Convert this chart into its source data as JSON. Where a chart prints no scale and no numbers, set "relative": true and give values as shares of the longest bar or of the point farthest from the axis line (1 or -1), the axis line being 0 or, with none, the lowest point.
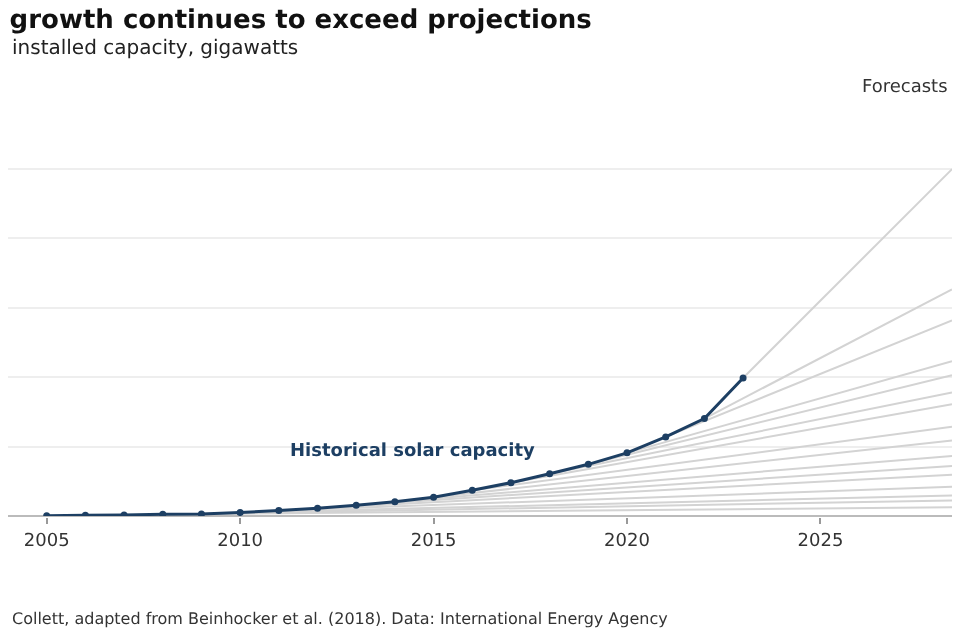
{
  "chart_data": {
    "type": "line",
    "title": "growth continues to exceed projections",
    "subtitle": "installed capacity, gigawatts",
    "relative": true,
    "grid": "y",
    "xlim": [
      2004,
      2028.4
    ],
    "xticks": [
      2005,
      2010,
      2015,
      2020,
      2025
    ],
    "series": [
      {
        "color": "#d3d3d3",
        "marker": "none",
        "x": [
          2008,
          2028.4
        ],
        "values": [
          0.005,
          0.025
        ]
      },
      {
        "color": "#d3d3d3",
        "marker": "none",
        "x": [
          2009,
          2028.4
        ],
        "values": [
          0.006,
          0.045
        ]
      },
      {
        "color": "#d3d3d3",
        "marker": "none",
        "x": [
          2010,
          2028.4
        ],
        "values": [
          0.01,
          0.059
        ]
      },
      {
        "color": "#d3d3d3",
        "marker": "none",
        "x": [
          2011,
          2028.4
        ],
        "values": [
          0.016,
          0.084
        ]
      },
      {
        "color": "#d3d3d3",
        "marker": "none",
        "x": [
          2012,
          2028.4
        ],
        "values": [
          0.022,
          0.119
        ]
      },
      {
        "color": "#d3d3d3",
        "marker": "none",
        "x": [
          2013,
          2028.4
        ],
        "values": [
          0.031,
          0.144
        ]
      },
      {
        "color": "#d3d3d3",
        "marker": "none",
        "x": [
          2014,
          2028.4
        ],
        "values": [
          0.041,
          0.173
        ]
      },
      {
        "color": "#d3d3d3",
        "marker": "none",
        "x": [
          2015,
          2028.4
        ],
        "values": [
          0.054,
          0.218
        ]
      },
      {
        "color": "#d3d3d3",
        "marker": "none",
        "x": [
          2016,
          2028.4
        ],
        "values": [
          0.074,
          0.257
        ]
      },
      {
        "color": "#d3d3d3",
        "marker": "none",
        "x": [
          2017,
          2028.4
        ],
        "values": [
          0.096,
          0.322
        ]
      },
      {
        "color": "#d3d3d3",
        "marker": "none",
        "x": [
          2018,
          2028.4
        ],
        "values": [
          0.122,
          0.356
        ]
      },
      {
        "color": "#d3d3d3",
        "marker": "none",
        "x": [
          2019,
          2028.4
        ],
        "values": [
          0.149,
          0.406
        ]
      },
      {
        "color": "#d3d3d3",
        "marker": "none",
        "x": [
          2020,
          2028.4
        ],
        "values": [
          0.182,
          0.446
        ]
      },
      {
        "color": "#d3d3d3",
        "marker": "none",
        "x": [
          2021,
          2028.4
        ],
        "values": [
          0.228,
          0.564
        ]
      },
      {
        "color": "#d3d3d3",
        "marker": "none",
        "x": [
          2022,
          2028.4
        ],
        "values": [
          0.281,
          0.653
        ]
      },
      {
        "color": "#d3d3d3",
        "marker": "none",
        "x": [
          2023,
          2028.4
        ],
        "values": [
          0.398,
          1
        ]
      },
      {
        "color": "#1d3f63",
        "marker": "circle",
        "x": [
          2005,
          2006,
          2007,
          2008,
          2009,
          2010,
          2011,
          2012,
          2013,
          2014,
          2015,
          2016,
          2017,
          2018,
          2019,
          2020,
          2021,
          2022,
          2023
        ],
        "values": [
          0.001,
          0.002,
          0.003,
          0.005,
          0.006,
          0.01,
          0.016,
          0.022,
          0.031,
          0.041,
          0.054,
          0.074,
          0.096,
          0.122,
          0.149,
          0.182,
          0.228,
          0.281,
          0.398
        ]
      }
    ],
    "annotations": [
      "Historical solar capacity",
      "Forecasts",
      "Collett, adapted from Beinhocker et al. (2018). Data: International Energy Agency"
    ]
  }
}
